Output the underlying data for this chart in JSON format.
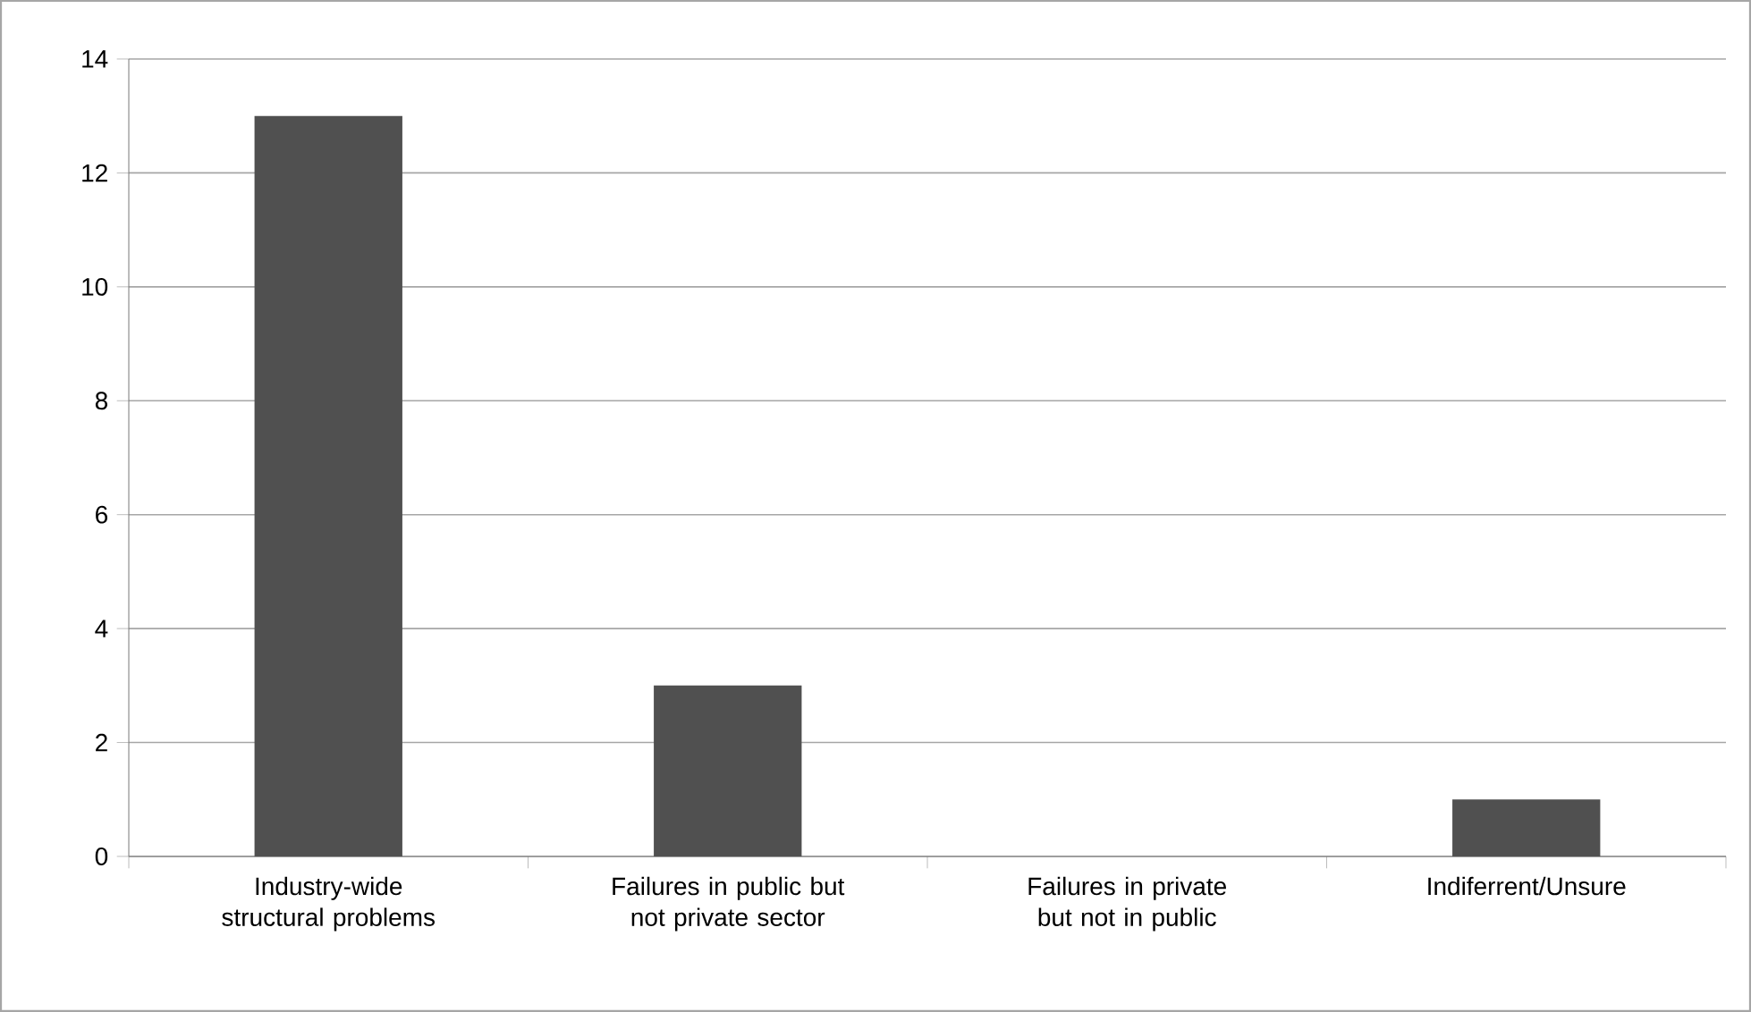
{
  "chart_data": {
    "type": "bar",
    "categories": [
      "Industry-wide structural problems",
      "Failures in public but not private sector",
      "Failures in private but not in public",
      "Indiferrent/Unsure"
    ],
    "values": [
      13,
      3,
      0,
      1
    ],
    "color": "#505050",
    "ylim": [
      0,
      14
    ],
    "yticks": [
      0,
      2,
      4,
      6,
      8,
      10,
      12,
      14
    ],
    "grid": "y"
  }
}
